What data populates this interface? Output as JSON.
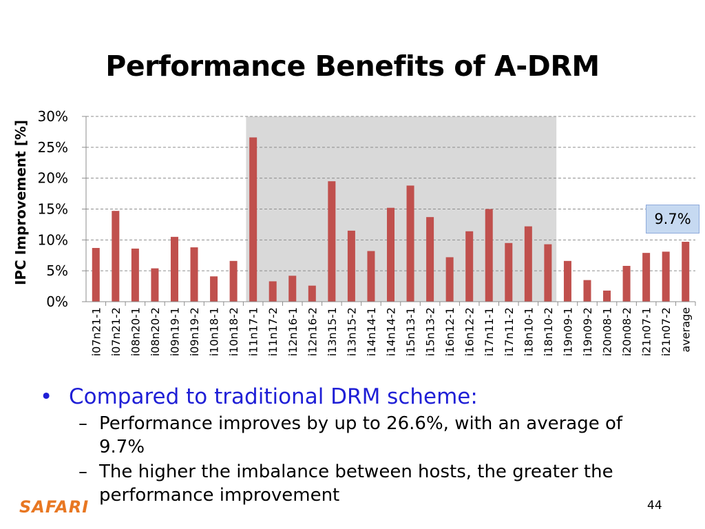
{
  "slide": {
    "title": "Performance Benefits of A-DRM",
    "callout": "9.7%",
    "bullet": "Compared to traditional DRM scheme:",
    "subbullets": [
      "Performance improves by up to 26.6%, with an average of 9.7%",
      "The higher the imbalance between hosts, the greater the performance improvement"
    ],
    "logo": "SAFARI",
    "page_number": "44"
  },
  "chart_data": {
    "type": "bar",
    "title": "",
    "xlabel": "",
    "ylabel": "IPC Improvement [%]",
    "ylim": [
      0,
      30
    ],
    "yticks": [
      "0%",
      "5%",
      "10%",
      "15%",
      "20%",
      "25%",
      "30%"
    ],
    "grid": true,
    "bar_color": "#c0504d",
    "highlight_color": "#d9d9d9",
    "highlight_range": [
      "i11n17-1",
      "i18n10-2"
    ],
    "categories": [
      "i07n21-1",
      "i07n21-2",
      "i08n20-1",
      "i08n20-2",
      "i09n19-1",
      "i09n19-2",
      "i10n18-1",
      "i10n18-2",
      "i11n17-1",
      "i11n17-2",
      "i12n16-1",
      "i12n16-2",
      "i13n15-1",
      "i13n15-2",
      "i14n14-1",
      "i14n14-2",
      "i15n13-1",
      "i15n13-2",
      "i16n12-1",
      "i16n12-2",
      "i17n11-1",
      "i17n11-2",
      "i18n10-1",
      "i18n10-2",
      "i19n09-1",
      "i19n09-2",
      "i20n08-1",
      "i20n08-2",
      "i21n07-1",
      "i21n07-2",
      "average"
    ],
    "values": [
      8.7,
      14.7,
      8.6,
      5.4,
      10.5,
      8.8,
      4.1,
      6.6,
      26.6,
      3.3,
      4.2,
      2.6,
      19.5,
      11.5,
      8.2,
      15.2,
      18.8,
      13.7,
      7.2,
      11.4,
      15.0,
      9.5,
      12.2,
      9.3,
      6.6,
      3.5,
      1.8,
      5.8,
      7.9,
      8.1,
      9.7
    ]
  }
}
